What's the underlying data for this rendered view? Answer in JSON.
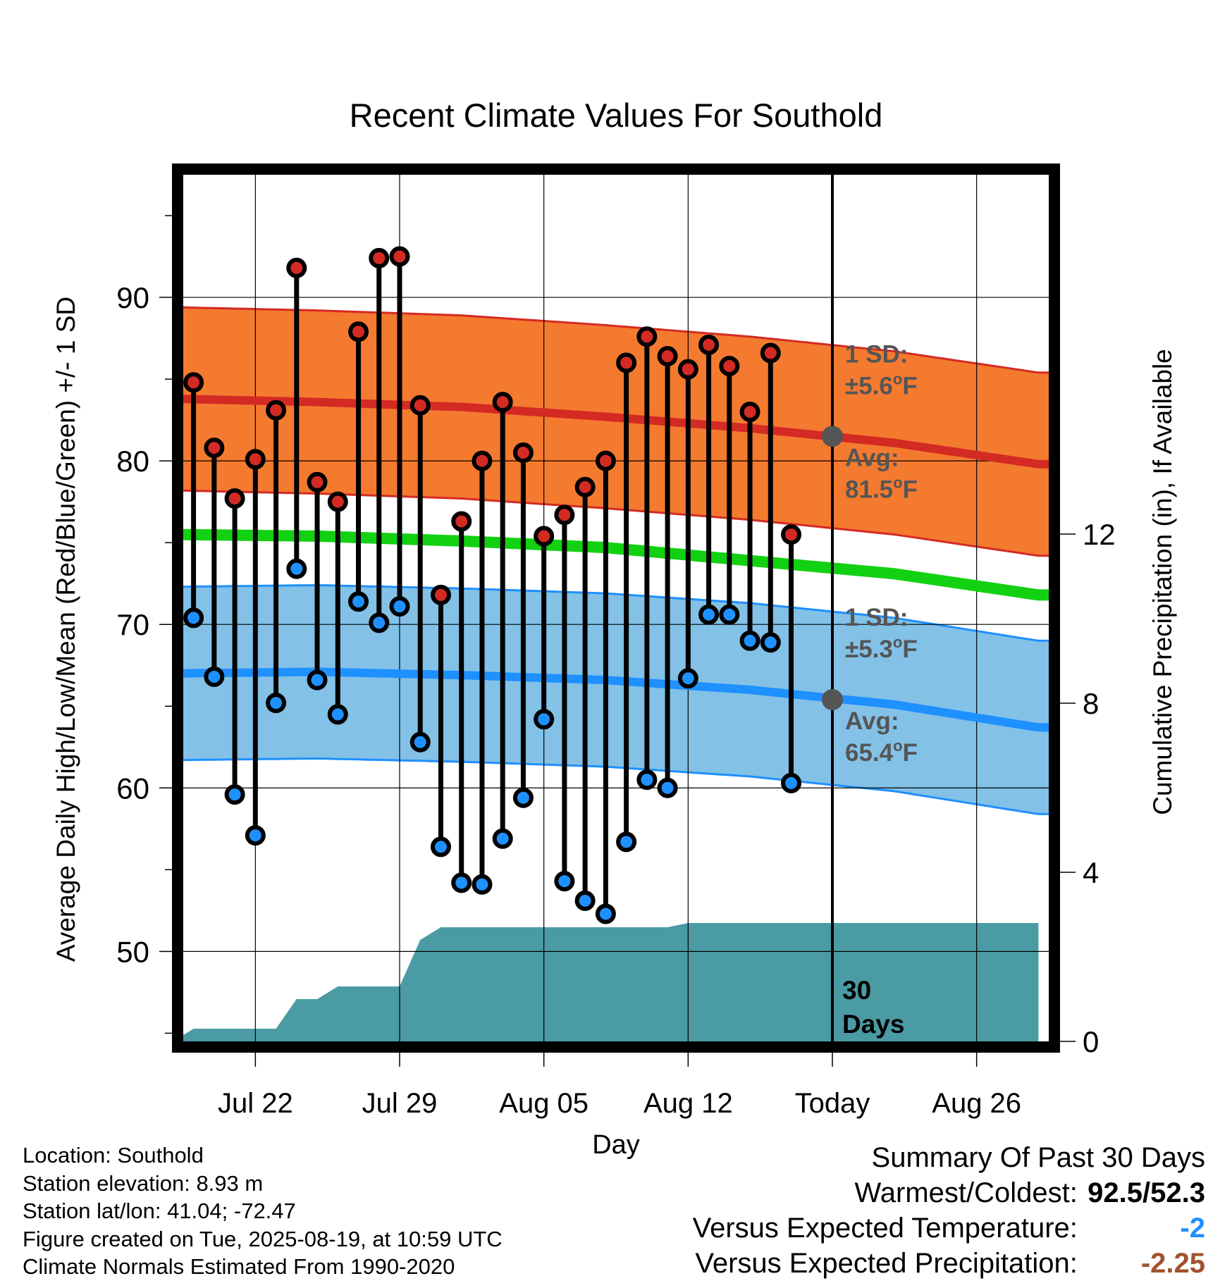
{
  "chart_data": {
    "type": "line",
    "title": "Recent Climate Values For Southold",
    "xlabel": "Day",
    "ylabel": "Average Daily High/Low/Mean (Red/Blue/Green) +/- 1 SD",
    "y2label": "Cumulative Precipitation (in), If Available",
    "ylim": [
      44.5,
      97.5
    ],
    "y2lim": [
      0,
      20.5
    ],
    "yticks": [
      50,
      60,
      70,
      80,
      90
    ],
    "y2ticks": [
      0,
      4,
      8,
      12
    ],
    "xlim": [
      "2025-07-18T12:00",
      "2025-08-29T12:00"
    ],
    "xticks": [
      {
        "date": "2025-07-22",
        "label": "Jul 22"
      },
      {
        "date": "2025-07-29",
        "label": "Jul 29"
      },
      {
        "date": "2025-08-05",
        "label": "Aug 05"
      },
      {
        "date": "2025-08-12",
        "label": "Aug 12"
      },
      {
        "date": "2025-08-19",
        "label": "Today"
      },
      {
        "date": "2025-08-26",
        "label": "Aug 26"
      }
    ],
    "today": "2025-08-19",
    "grid": true,
    "daily": [
      {
        "date": "2025-07-19",
        "high": 84.8,
        "low": 70.4
      },
      {
        "date": "2025-07-20",
        "high": 80.8,
        "low": 66.8
      },
      {
        "date": "2025-07-21",
        "high": 77.7,
        "low": 59.6
      },
      {
        "date": "2025-07-22",
        "high": 80.1,
        "low": 57.1
      },
      {
        "date": "2025-07-23",
        "high": 83.1,
        "low": 65.2
      },
      {
        "date": "2025-07-24",
        "high": 91.8,
        "low": 73.4
      },
      {
        "date": "2025-07-25",
        "high": 78.7,
        "low": 66.6
      },
      {
        "date": "2025-07-26",
        "high": 77.5,
        "low": 64.5
      },
      {
        "date": "2025-07-27",
        "high": 87.9,
        "low": 71.4
      },
      {
        "date": "2025-07-28",
        "high": 92.4,
        "low": 70.1
      },
      {
        "date": "2025-07-29",
        "high": 92.5,
        "low": 71.1
      },
      {
        "date": "2025-07-30",
        "high": 83.4,
        "low": 62.8
      },
      {
        "date": "2025-07-31",
        "high": 71.8,
        "low": 56.4
      },
      {
        "date": "2025-08-01",
        "high": 76.3,
        "low": 54.2
      },
      {
        "date": "2025-08-02",
        "high": 80.0,
        "low": 54.1
      },
      {
        "date": "2025-08-03",
        "high": 83.6,
        "low": 56.9
      },
      {
        "date": "2025-08-04",
        "high": 80.5,
        "low": 59.4
      },
      {
        "date": "2025-08-05",
        "high": 75.4,
        "low": 64.2
      },
      {
        "date": "2025-08-06",
        "high": 76.7,
        "low": 54.3
      },
      {
        "date": "2025-08-07",
        "high": 78.4,
        "low": 53.1
      },
      {
        "date": "2025-08-08",
        "high": 80.0,
        "low": 52.3
      },
      {
        "date": "2025-08-09",
        "high": 86.0,
        "low": 56.7
      },
      {
        "date": "2025-08-10",
        "high": 87.6,
        "low": 60.5
      },
      {
        "date": "2025-08-11",
        "high": 86.4,
        "low": 60.0
      },
      {
        "date": "2025-08-12",
        "high": 85.6,
        "low": 66.7
      },
      {
        "date": "2025-08-13",
        "high": 87.1,
        "low": 70.6
      },
      {
        "date": "2025-08-14",
        "high": 85.8,
        "low": 70.6
      },
      {
        "date": "2025-08-15",
        "high": 83.0,
        "low": 69.0
      },
      {
        "date": "2025-08-16",
        "high": 86.6,
        "low": 68.9
      },
      {
        "date": "2025-08-17",
        "high": 75.5,
        "low": 60.3
      }
    ],
    "normal_high": [
      {
        "date": "2025-07-18",
        "value": 83.8
      },
      {
        "date": "2025-07-25",
        "value": 83.6
      },
      {
        "date": "2025-08-01",
        "value": 83.3
      },
      {
        "date": "2025-08-08",
        "value": 82.7
      },
      {
        "date": "2025-08-15",
        "value": 82.0
      },
      {
        "date": "2025-08-22",
        "value": 81.1
      },
      {
        "date": "2025-08-29",
        "value": 79.8
      }
    ],
    "normal_low": [
      {
        "date": "2025-07-18",
        "value": 67.0
      },
      {
        "date": "2025-07-25",
        "value": 67.1
      },
      {
        "date": "2025-08-01",
        "value": 66.9
      },
      {
        "date": "2025-08-08",
        "value": 66.6
      },
      {
        "date": "2025-08-15",
        "value": 66.0
      },
      {
        "date": "2025-08-22",
        "value": 65.1
      },
      {
        "date": "2025-08-29",
        "value": 63.7
      }
    ],
    "normal_mean": [
      {
        "date": "2025-07-18",
        "value": 75.5
      },
      {
        "date": "2025-07-25",
        "value": 75.4
      },
      {
        "date": "2025-08-01",
        "value": 75.1
      },
      {
        "date": "2025-08-08",
        "value": 74.7
      },
      {
        "date": "2025-08-15",
        "value": 73.9
      },
      {
        "date": "2025-08-22",
        "value": 73.1
      },
      {
        "date": "2025-08-29",
        "value": 71.8
      }
    ],
    "high_sd": 5.6,
    "low_sd": 5.3,
    "today_normals": {
      "high": 81.5,
      "low": 65.4
    },
    "precip_cumulative": [
      {
        "date": "2025-07-18",
        "value": 0.0
      },
      {
        "date": "2025-07-19",
        "value": 0.3
      },
      {
        "date": "2025-07-23",
        "value": 0.3
      },
      {
        "date": "2025-07-24",
        "value": 1.0
      },
      {
        "date": "2025-07-25",
        "value": 1.0
      },
      {
        "date": "2025-07-26",
        "value": 1.3
      },
      {
        "date": "2025-07-29",
        "value": 1.3
      },
      {
        "date": "2025-07-30",
        "value": 2.4
      },
      {
        "date": "2025-07-31",
        "value": 2.7
      },
      {
        "date": "2025-08-11",
        "value": 2.7
      },
      {
        "date": "2025-08-12",
        "value": 2.8
      },
      {
        "date": "2025-08-29",
        "value": 2.8
      }
    ],
    "annotations": {
      "high_sd_label": "1 SD:",
      "high_sd_value": "±5.6",
      "high_avg_label": "Avg:",
      "high_avg_value": "81.5",
      "low_sd_label": "1 SD:",
      "low_sd_value": "±5.3",
      "low_avg_label": "Avg:",
      "low_avg_value": "65.4",
      "degree_symbol": "o",
      "unit_letter": "F",
      "precip_period_line1": "30",
      "precip_period_line2": "Days"
    },
    "colors": {
      "high_band": "#f47a2f",
      "high_line": "#d42a24",
      "low_band": "#83c1e7",
      "low_line": "#1e90ff",
      "mean_line": "#12d112",
      "precip_fill": "#4a9ba4",
      "high_marker": "#d42a24",
      "low_marker": "#1e90ff",
      "annotation_text": "#555555",
      "today_marker": "#555555"
    }
  },
  "station": {
    "location": "Location: Southold",
    "elevation": "Station elevation: 8.93 m",
    "latlon": "Station lat/lon: 41.04; -72.47",
    "created": "Figure created on Tue, 2025-08-19, at 10:59 UTC",
    "normals": "Climate Normals Estimated From 1990-2020"
  },
  "summary": {
    "title": "Summary Of Past 30 Days",
    "warmest_label": "Warmest/Coldest:",
    "warmest_value": "92.5/52.3",
    "vs_temp_label": "Versus Expected Temperature:",
    "vs_temp_value": "-2",
    "vs_precip_label": "Versus Expected Precipitation:",
    "vs_precip_value": "-2.25"
  }
}
